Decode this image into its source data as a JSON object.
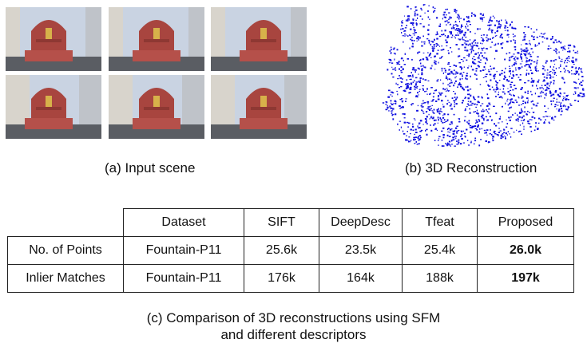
{
  "captions": {
    "a": "(a) Input scene",
    "b": "(b) 3D Reconstruction",
    "c_line1": "(c) Comparison of 3D reconstructions using SFM",
    "c_line2": "and different descriptors"
  },
  "colors": {
    "point_cloud": "#1010e0",
    "fountain": "#a8453f",
    "sky": "#c9d3e2",
    "ground": "#5a5d63"
  },
  "table": {
    "headers": [
      "Dataset",
      "SIFT",
      "DeepDesc",
      "Tfeat",
      "Proposed"
    ],
    "rows": [
      {
        "label": "No. of Points",
        "cells": [
          "Fountain-P11",
          "25.6k",
          "23.5k",
          "25.4k",
          "26.0k"
        ]
      },
      {
        "label": "Inlier Matches",
        "cells": [
          "Fountain-P11",
          "176k",
          "164k",
          "188k",
          "197k"
        ]
      }
    ],
    "best_column": "Proposed"
  }
}
